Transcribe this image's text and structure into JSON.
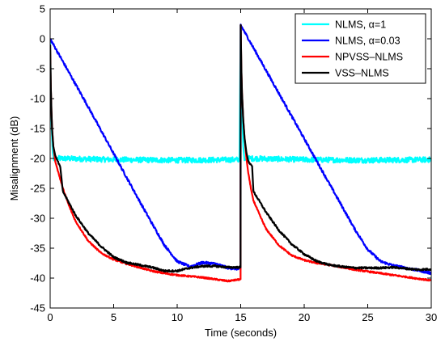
{
  "chart_data": {
    "type": "line",
    "title": "",
    "xlabel": "Time (seconds)",
    "ylabel": "Misalignment (dB)",
    "xlim": [
      0,
      30
    ],
    "ylim": [
      -45,
      5
    ],
    "xticks": [
      "0",
      "5",
      "10",
      "15",
      "20",
      "25",
      "30"
    ],
    "yticks": [
      "5",
      "0",
      "-5",
      "-10",
      "-15",
      "-20",
      "-25",
      "-30",
      "-35",
      "-40",
      "-45"
    ],
    "xtick_values": [
      0,
      5,
      10,
      15,
      20,
      25,
      30
    ],
    "ytick_values": [
      5,
      0,
      -5,
      -10,
      -15,
      -20,
      -25,
      -30,
      -35,
      -40,
      -45
    ],
    "grid": false,
    "legend_position": "top-right",
    "series": [
      {
        "name": "NLMS, α=1",
        "color": "#00ffff",
        "noise": 0.45,
        "x": [
          0,
          0.05,
          0.12,
          0.2,
          0.3,
          0.45,
          0.6,
          1,
          5,
          10,
          14.9,
          15,
          15.05,
          15.12,
          15.2,
          15.3,
          15.45,
          15.6,
          16,
          20,
          25,
          30
        ],
        "y": [
          0,
          -8,
          -15,
          -19,
          -20.3,
          -20.1,
          -20,
          -20,
          -20.2,
          -20.3,
          -20.2,
          2.3,
          -6,
          -13,
          -18,
          -20.3,
          -20.1,
          -20,
          -20,
          -20.2,
          -20.3,
          -20.2
        ]
      },
      {
        "name": "NLMS, α=0.03",
        "color": "#0000ff",
        "noise": 0.2,
        "x": [
          0,
          1,
          2,
          3,
          4,
          5,
          6,
          7,
          8,
          9,
          10,
          11,
          12,
          13,
          14,
          14.99,
          15,
          16,
          17,
          18,
          19,
          20,
          21,
          22,
          23,
          24,
          25,
          26,
          27,
          28,
          29,
          30
        ],
        "y": [
          0,
          -3.8,
          -7.6,
          -11.4,
          -15.3,
          -19.2,
          -23.1,
          -27,
          -30.8,
          -34.5,
          -37.2,
          -38.1,
          -37.4,
          -37.6,
          -38.3,
          -38.5,
          2.3,
          -1.5,
          -5.3,
          -9.1,
          -12.9,
          -16.7,
          -20.5,
          -24.3,
          -28.1,
          -31.9,
          -35.2,
          -37.2,
          -37.9,
          -38.3,
          -38.7,
          -39.2
        ]
      },
      {
        "name": "NPVSS–NLMS",
        "color": "#ff0000",
        "noise": 0.12,
        "x": [
          0,
          0.05,
          0.1,
          0.15,
          0.25,
          0.4,
          0.6,
          1,
          1.5,
          2,
          3,
          4,
          5,
          6,
          7,
          8,
          9,
          10,
          11,
          12,
          13,
          14,
          14.99,
          15,
          15.05,
          15.1,
          15.2,
          15.3,
          15.45,
          15.6,
          15.8,
          16,
          16.5,
          17,
          18,
          19,
          20,
          21,
          22,
          23,
          24,
          25,
          26,
          27,
          28,
          29,
          30
        ],
        "y": [
          -1,
          -8,
          -12,
          -15,
          -18,
          -20.5,
          -22,
          -25,
          -28,
          -30.5,
          -33.8,
          -35.8,
          -36.9,
          -37.6,
          -38.2,
          -38.8,
          -39.2,
          -39.5,
          -39.7,
          -39.9,
          -40.2,
          -40.5,
          -40.2,
          2.3,
          -5,
          -9,
          -13.5,
          -16.5,
          -20,
          -22.5,
          -25,
          -27,
          -29.5,
          -31.8,
          -34.5,
          -36.2,
          -37,
          -37.5,
          -37.8,
          -38.2,
          -38.6,
          -38.9,
          -39.2,
          -39.5,
          -39.8,
          -40.1,
          -40.4
        ]
      },
      {
        "name": "VSS–NLMS",
        "color": "#000000",
        "noise": 0.15,
        "x": [
          0,
          0.05,
          0.1,
          0.15,
          0.25,
          0.4,
          0.6,
          0.8,
          1,
          1.5,
          2,
          3,
          4,
          5,
          6,
          7,
          8,
          9,
          10,
          11,
          12,
          13,
          14,
          14.99,
          15,
          15.05,
          15.1,
          15.2,
          15.3,
          15.45,
          15.6,
          15.8,
          15.9,
          16,
          17,
          18,
          19,
          20,
          21,
          22,
          23,
          24,
          25,
          26,
          27,
          28,
          29,
          30
        ],
        "y": [
          -1,
          -8,
          -12,
          -15,
          -18,
          -19.5,
          -20.5,
          -21.5,
          -25.5,
          -27.5,
          -29.5,
          -32.5,
          -34.7,
          -36.5,
          -37.4,
          -37.8,
          -38.2,
          -38.8,
          -38.8,
          -38.3,
          -38,
          -38,
          -38.2,
          -38.2,
          2.3,
          -5,
          -9,
          -13.5,
          -16.5,
          -19,
          -20.5,
          -21,
          -21.3,
          -25.5,
          -29,
          -32,
          -34.3,
          -36,
          -37.2,
          -37.8,
          -38.1,
          -38.3,
          -38.3,
          -38.3,
          -38.2,
          -38.4,
          -38.6,
          -38.5
        ]
      }
    ]
  }
}
